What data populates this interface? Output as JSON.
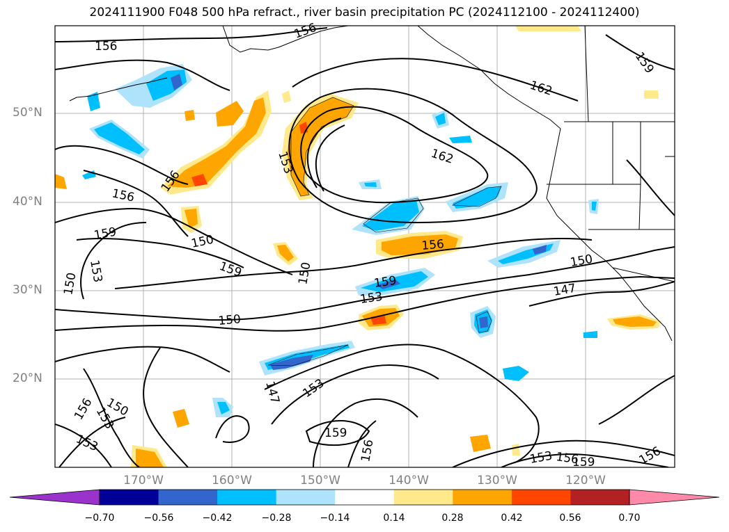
{
  "title": "2024111900 F048 500 hPa refract., river basin precipitation PC (2024112100 - 2024112400)",
  "lat_labels": [
    "50°N",
    "40°N",
    "30°N",
    "20°N"
  ],
  "lon_labels": [
    "170°W",
    "160°W",
    "150°W",
    "140°W",
    "130°W",
    "120°W"
  ],
  "contour_labels": [
    "156",
    "156",
    "162",
    "159",
    "162",
    "153",
    "156",
    "156",
    "159",
    "150",
    "159",
    "150",
    "153",
    "150",
    "156",
    "150",
    "159",
    "153",
    "150",
    "147",
    "153",
    "147",
    "159",
    "156",
    "153",
    "156",
    "153",
    "150",
    "153",
    "156",
    "159",
    "156"
  ],
  "colorbar": {
    "ticks": [
      "−0.70",
      "−0.56",
      "−0.42",
      "−0.28",
      "−0.14",
      "0.14",
      "0.28",
      "0.42",
      "0.56",
      "0.70"
    ],
    "colors": [
      "#9933cc",
      "#000099",
      "#3366cc",
      "#00bfff",
      "#aee3fb",
      "#ffffff",
      "#ffe98a",
      "#ffa500",
      "#ff4500",
      "#b22222",
      "#ff89a8",
      "#ff89a8"
    ],
    "under_color": "#9933cc",
    "over_color": "#ff89a8"
  }
}
